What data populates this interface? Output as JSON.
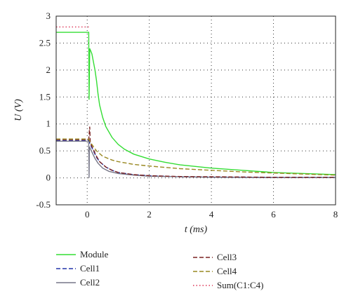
{
  "chart_data": {
    "type": "line",
    "xlabel": "t (ms)",
    "ylabel": "U (V)",
    "xlim": [
      -1,
      8
    ],
    "ylim": [
      -0.5,
      3
    ],
    "xticks": [
      0,
      2,
      4,
      6,
      8
    ],
    "yticks": [
      -0.5,
      0,
      0.5,
      1,
      1.5,
      2,
      2.5,
      3
    ],
    "grid": "dotted",
    "legend_position": "bottom",
    "series": [
      {
        "name": "Module",
        "color": "#33dd33",
        "dash": "solid",
        "points": [
          [
            -1,
            2.7
          ],
          [
            0.05,
            2.7
          ],
          [
            0.06,
            1.45
          ],
          [
            0.08,
            2.4
          ],
          [
            0.15,
            2.3
          ],
          [
            0.25,
            2.0
          ],
          [
            0.3,
            1.8
          ],
          [
            0.35,
            1.55
          ],
          [
            0.4,
            1.35
          ],
          [
            0.5,
            1.12
          ],
          [
            0.6,
            0.95
          ],
          [
            0.8,
            0.75
          ],
          [
            1.0,
            0.62
          ],
          [
            1.2,
            0.53
          ],
          [
            1.5,
            0.44
          ],
          [
            2,
            0.35
          ],
          [
            2.5,
            0.29
          ],
          [
            3,
            0.24
          ],
          [
            4,
            0.18
          ],
          [
            5,
            0.14
          ],
          [
            6,
            0.1
          ],
          [
            7,
            0.08
          ],
          [
            8,
            0.06
          ]
        ]
      },
      {
        "name": "Cell1",
        "color": "#2233aa",
        "dash": "6,3",
        "points": [
          [
            -1,
            0.69
          ],
          [
            0.05,
            0.69
          ],
          [
            0.1,
            0.62
          ],
          [
            0.2,
            0.5
          ],
          [
            0.3,
            0.38
          ],
          [
            0.4,
            0.3
          ],
          [
            0.6,
            0.2
          ],
          [
            0.8,
            0.14
          ],
          [
            1.0,
            0.1
          ],
          [
            1.5,
            0.06
          ],
          [
            2,
            0.04
          ],
          [
            3,
            0.02
          ],
          [
            4,
            0.015
          ],
          [
            6,
            0.01
          ],
          [
            8,
            0.01
          ]
        ]
      },
      {
        "name": "Cell2",
        "color": "#777788",
        "dash": "solid",
        "points": [
          [
            -1,
            0.68
          ],
          [
            0.05,
            0.68
          ],
          [
            0.06,
            0.0
          ],
          [
            0.07,
            0.58
          ],
          [
            0.15,
            0.48
          ],
          [
            0.25,
            0.36
          ],
          [
            0.35,
            0.27
          ],
          [
            0.5,
            0.18
          ],
          [
            0.7,
            0.12
          ],
          [
            1.0,
            0.08
          ],
          [
            1.5,
            0.05
          ],
          [
            2,
            0.03
          ],
          [
            3,
            0.02
          ],
          [
            4,
            0.01
          ],
          [
            6,
            0.005
          ],
          [
            8,
            0.005
          ]
        ]
      },
      {
        "name": "Cell3",
        "color": "#7a2222",
        "dash": "6,3",
        "points": [
          [
            -1,
            0.71
          ],
          [
            0.05,
            0.71
          ],
          [
            0.08,
            0.95
          ],
          [
            0.1,
            0.65
          ],
          [
            0.2,
            0.52
          ],
          [
            0.3,
            0.4
          ],
          [
            0.4,
            0.3
          ],
          [
            0.6,
            0.2
          ],
          [
            0.8,
            0.14
          ],
          [
            1.0,
            0.1
          ],
          [
            1.5,
            0.06
          ],
          [
            2,
            0.04
          ],
          [
            3,
            0.025
          ],
          [
            4,
            0.02
          ],
          [
            6,
            0.01
          ],
          [
            8,
            0.01
          ]
        ]
      },
      {
        "name": "Cell4",
        "color": "#998822",
        "dash": "6,3",
        "points": [
          [
            -1,
            0.72
          ],
          [
            0.05,
            0.72
          ],
          [
            0.1,
            0.66
          ],
          [
            0.2,
            0.58
          ],
          [
            0.3,
            0.5
          ],
          [
            0.5,
            0.4
          ],
          [
            0.8,
            0.33
          ],
          [
            1.0,
            0.3
          ],
          [
            1.5,
            0.25
          ],
          [
            2,
            0.22
          ],
          [
            3,
            0.17
          ],
          [
            4,
            0.14
          ],
          [
            5,
            0.11
          ],
          [
            6,
            0.09
          ],
          [
            7,
            0.07
          ],
          [
            8,
            0.05
          ]
        ]
      },
      {
        "name": "Sum(C1:C4)",
        "color": "#dd3355",
        "dash": "1.5,3",
        "points": [
          [
            -1,
            2.8
          ],
          [
            0.05,
            2.8
          ]
        ]
      }
    ]
  }
}
